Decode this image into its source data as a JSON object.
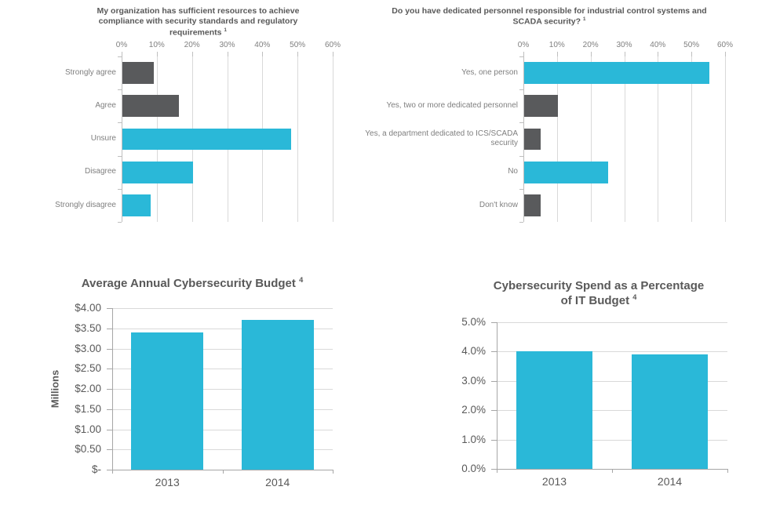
{
  "colors": {
    "accent_cyan": "#2AB8D8",
    "dark_gray_bar": "#595A5C",
    "gridline": "#D9D9D9",
    "axis_line": "#A6A6A6",
    "minor_axis_line": "#BFBFBF",
    "title_text": "#595959",
    "label_text": "#7F7F7F"
  },
  "chart_data": [
    {
      "id": "resources-compliance",
      "type": "bar",
      "orientation": "horizontal",
      "title": "My organization has sufficient resources to achieve compliance with security standards and regulatory requirements",
      "title_superscript": "1",
      "categories": [
        "Strongly agree",
        "Agree",
        "Unsure",
        "Disagree",
        "Strongly disagree"
      ],
      "values": [
        9,
        16,
        48,
        20,
        8
      ],
      "unit": "%",
      "bar_colors": [
        "#595A5C",
        "#595A5C",
        "#2AB8D8",
        "#2AB8D8",
        "#2AB8D8"
      ],
      "x_ticks": [
        "0%",
        "10%",
        "20%",
        "30%",
        "40%",
        "50%",
        "60%"
      ],
      "xlim": [
        0,
        60
      ],
      "grid": true,
      "tick_position": "top",
      "legend": "none"
    },
    {
      "id": "dedicated-personnel",
      "type": "bar",
      "orientation": "horizontal",
      "title": "Do you have dedicated personnel responsible for industrial control systems and SCADA security?",
      "title_superscript": "1",
      "categories": [
        "Yes, one person",
        "Yes, two or more dedicated personnel",
        "Yes, a department dedicated to ICS/SCADA security",
        "No",
        "Don't know"
      ],
      "values": [
        55,
        10,
        5,
        25,
        5
      ],
      "unit": "%",
      "bar_colors": [
        "#2AB8D8",
        "#595A5C",
        "#595A5C",
        "#2AB8D8",
        "#595A5C"
      ],
      "x_ticks": [
        "0%",
        "10%",
        "20%",
        "30%",
        "40%",
        "50%",
        "60%"
      ],
      "xlim": [
        0,
        60
      ],
      "grid": true,
      "tick_position": "top",
      "legend": "none"
    },
    {
      "id": "annual-budget",
      "type": "bar",
      "orientation": "vertical",
      "title": "Average Annual Cybersecurity Budget",
      "title_superscript": "4",
      "ylabel": "Millions",
      "categories": [
        "2013",
        "2014"
      ],
      "values": [
        3.4,
        3.7
      ],
      "unit": "$M",
      "bar_colors": [
        "#2AB8D8",
        "#2AB8D8"
      ],
      "y_ticks": [
        "$4.00",
        "$3.50",
        "$3.00",
        "$2.50",
        "$2.00",
        "$1.50",
        "$1.00",
        "$0.50",
        "$-"
      ],
      "ylim": [
        0,
        4
      ],
      "grid": true,
      "legend": "none"
    },
    {
      "id": "it-budget-percentage",
      "type": "bar",
      "orientation": "vertical",
      "title": "Cybersecurity Spend as a Percentage of IT Budget",
      "title_superscript": "4",
      "categories": [
        "2013",
        "2014"
      ],
      "values": [
        4.0,
        3.9
      ],
      "unit": "%",
      "bar_colors": [
        "#2AB8D8",
        "#2AB8D8"
      ],
      "y_ticks": [
        "5.0%",
        "4.0%",
        "3.0%",
        "2.0%",
        "1.0%",
        "0.0%"
      ],
      "ylim": [
        0,
        5
      ],
      "grid": true,
      "legend": "none"
    }
  ]
}
